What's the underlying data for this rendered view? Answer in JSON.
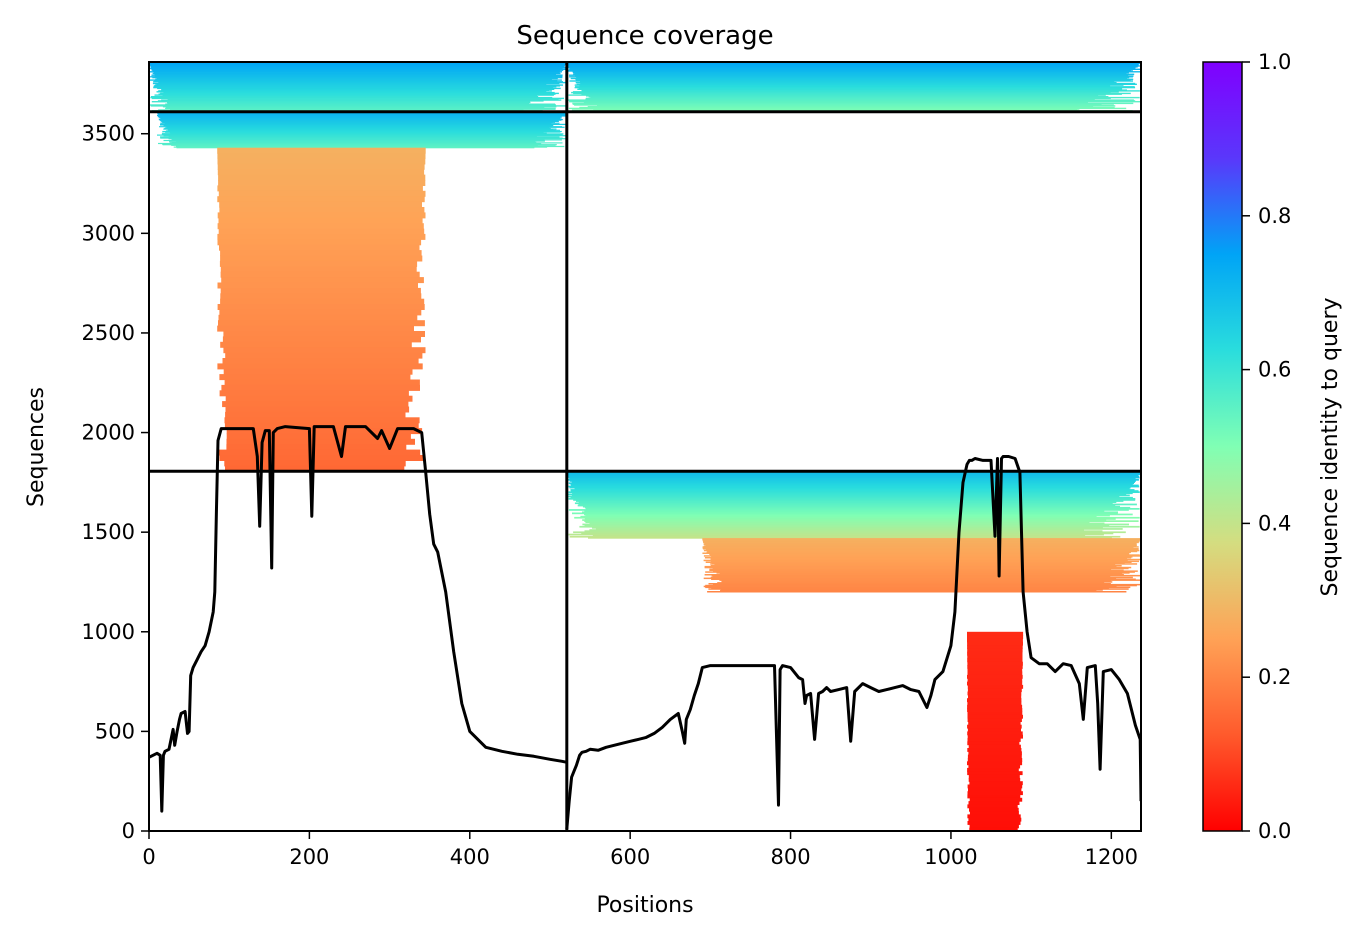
{
  "chart_data": {
    "type": "heatmap",
    "title": "Sequence coverage",
    "xlabel": "Positions",
    "ylabel": "Sequences",
    "xlim": [
      0,
      1237
    ],
    "ylim": [
      0,
      3860
    ],
    "xticks": [
      0,
      200,
      400,
      600,
      800,
      1000,
      1200
    ],
    "yticks": [
      0,
      500,
      1000,
      1500,
      2000,
      2500,
      3000,
      3500
    ],
    "colorbar": {
      "label": "Sequence identity to query",
      "range": [
        0.0,
        1.0
      ],
      "ticks": [
        "0.0",
        "0.2",
        "0.4",
        "0.6",
        "0.8",
        "1.0"
      ],
      "colormap": "rainbow_r",
      "stops": [
        "#ff0000",
        "#ff5a2c",
        "#ffa256",
        "#d4dd80",
        "#80ffb4",
        "#2adddd",
        "#00a4f6",
        "#5a37fb",
        "#8000ff"
      ]
    },
    "chain_boundaries": {
      "position_split": 521,
      "sequence_split_left": 1806,
      "sequence_split_right": 3610
    },
    "blocks": [
      {
        "name": "top-left paired rows",
        "x": [
          0,
          521
        ],
        "y": [
          3610,
          3860
        ],
        "identity": [
          0.55,
          0.75
        ]
      },
      {
        "name": "top-right paired rows",
        "x": [
          521,
          1237
        ],
        "y": [
          3610,
          3860
        ],
        "identity": [
          0.5,
          0.75
        ]
      },
      {
        "name": "chain A high identity",
        "x": [
          10,
          521
        ],
        "y": [
          3430,
          3610
        ],
        "identity": [
          0.55,
          0.72
        ]
      },
      {
        "name": "chain A low identity",
        "x": [
          85,
          345
        ],
        "y": [
          1806,
          3430
        ],
        "identity": [
          0.15,
          0.28
        ]
      },
      {
        "name": "chain B high identity",
        "x": [
          521,
          1237
        ],
        "y": [
          1470,
          1806
        ],
        "identity": [
          0.4,
          0.7
        ]
      },
      {
        "name": "chain B mid identity",
        "x": [
          690,
          1237
        ],
        "y": [
          1200,
          1470
        ],
        "identity": [
          0.2,
          0.28
        ]
      },
      {
        "name": "chain B low identity",
        "x": [
          1020,
          1090
        ],
        "y": [
          0,
          1000
        ],
        "identity": [
          0.02,
          0.06
        ]
      }
    ],
    "series": [
      {
        "type": "line",
        "x": [
          0,
          10,
          14,
          16,
          18,
          20,
          25,
          30,
          32,
          35,
          38,
          40,
          45,
          48,
          50,
          52,
          55,
          60,
          65,
          70,
          75,
          80,
          82,
          84,
          86,
          90,
          100,
          110,
          120,
          130,
          135,
          138,
          141,
          145,
          150,
          153,
          155,
          160,
          170,
          200,
          203,
          206,
          210,
          230,
          240,
          245,
          250,
          270,
          285,
          290,
          300,
          310,
          330,
          340,
          345,
          350,
          355,
          360,
          370,
          380,
          390,
          400,
          420,
          440,
          460,
          480,
          500,
          515,
          521
        ],
        "y": [
          370,
          390,
          380,
          100,
          380,
          400,
          410,
          510,
          430,
          500,
          560,
          590,
          600,
          490,
          500,
          780,
          820,
          860,
          900,
          930,
          1000,
          1100,
          1200,
          1600,
          1960,
          2020,
          2020,
          2020,
          2020,
          2020,
          1880,
          1530,
          1950,
          2010,
          2010,
          1320,
          2000,
          2020,
          2030,
          2020,
          1580,
          2030,
          2030,
          2030,
          1880,
          2030,
          2030,
          2030,
          1970,
          2010,
          1920,
          2020,
          2020,
          2000,
          1800,
          1590,
          1440,
          1400,
          1200,
          900,
          640,
          500,
          420,
          400,
          385,
          375,
          360,
          350,
          345
        ]
      },
      {
        "type": "line",
        "x": [
          521,
          524,
          527,
          530,
          533,
          537,
          540,
          545,
          550,
          560,
          570,
          580,
          590,
          600,
          610,
          620,
          630,
          640,
          650,
          660,
          665,
          668,
          670,
          675,
          680,
          685,
          690,
          700,
          720,
          740,
          760,
          780,
          785,
          787,
          790,
          800,
          810,
          815,
          818,
          820,
          825,
          830,
          835,
          840,
          845,
          850,
          860,
          870,
          875,
          880,
          890,
          900,
          910,
          920,
          930,
          940,
          950,
          960,
          970,
          975,
          980,
          990,
          1000,
          1005,
          1010,
          1015,
          1020,
          1023,
          1026,
          1030,
          1040,
          1050,
          1055,
          1058,
          1060,
          1063,
          1065,
          1068,
          1072,
          1080,
          1086,
          1088,
          1090,
          1095,
          1100,
          1110,
          1120,
          1130,
          1140,
          1150,
          1160,
          1165,
          1170,
          1180,
          1183,
          1186,
          1190,
          1200,
          1210,
          1220,
          1230,
          1236,
          1237
        ],
        "y": [
          10,
          150,
          270,
          300,
          330,
          380,
          395,
          400,
          410,
          405,
          420,
          430,
          440,
          450,
          460,
          470,
          490,
          520,
          560,
          590,
          500,
          440,
          560,
          610,
          680,
          740,
          820,
          830,
          830,
          830,
          830,
          830,
          130,
          810,
          830,
          820,
          770,
          760,
          640,
          680,
          690,
          460,
          690,
          700,
          720,
          700,
          710,
          720,
          450,
          700,
          740,
          720,
          700,
          710,
          720,
          730,
          710,
          700,
          620,
          680,
          760,
          800,
          930,
          1100,
          1500,
          1750,
          1840,
          1860,
          1860,
          1870,
          1860,
          1860,
          1480,
          1870,
          1280,
          1870,
          1880,
          1880,
          1880,
          1870,
          1800,
          1500,
          1200,
          1000,
          870,
          840,
          840,
          800,
          840,
          830,
          740,
          560,
          820,
          830,
          640,
          310,
          800,
          810,
          760,
          690,
          530,
          460,
          150
        ]
      }
    ]
  }
}
